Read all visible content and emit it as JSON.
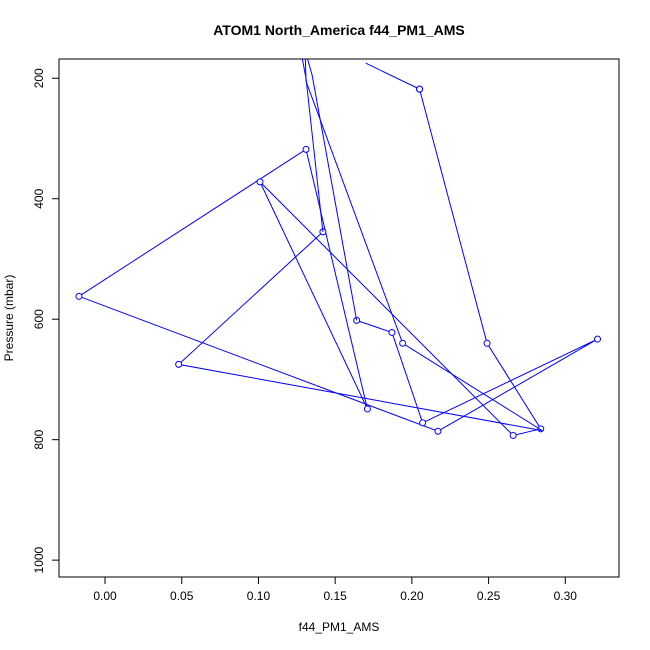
{
  "chart_data": {
    "type": "line",
    "title": "ATOM1 North_America f44_PM1_AMS",
    "xlabel": "f44_PM1_AMS",
    "ylabel": "Pressure (mbar)",
    "xlim": [
      -0.03,
      0.335
    ],
    "ylim": [
      1028,
      168
    ],
    "y_reversed": true,
    "x_ticks": [
      0.0,
      0.05,
      0.1,
      0.15,
      0.2,
      0.25,
      0.3
    ],
    "x_tick_labels": [
      "0.00",
      "0.05",
      "0.10",
      "0.15",
      "0.20",
      "0.25",
      "0.30"
    ],
    "y_ticks": [
      200,
      400,
      600,
      800,
      1000
    ],
    "y_tick_labels": [
      "200",
      "400",
      "600",
      "800",
      "1000"
    ],
    "grid": false,
    "legend": "none",
    "series": [
      {
        "color": "#0000ff",
        "marker": "open-circle",
        "x": [
          0.205,
          0.249,
          0.284,
          0.266,
          0.101,
          0.171,
          0.131,
          -0.017,
          0.217,
          0.321,
          0.207,
          0.187,
          0.164
        ],
        "y": [
          218,
          640,
          782,
          793,
          372,
          749,
          318,
          562,
          786,
          633,
          772,
          622,
          602
        ],
        "marker_shown": [
          true,
          true,
          true,
          true,
          true,
          true,
          true,
          true,
          true,
          true,
          true,
          true,
          true
        ]
      },
      {
        "color": "#0000ff",
        "marker": "open-circle",
        "x": [
          0.142,
          0.048,
          0.285,
          0.194,
          0.131,
          0.13,
          0.141
        ],
        "y": [
          455,
          675,
          785,
          640,
          205,
          120,
          140
        ],
        "marker_shown": [
          true,
          true,
          false,
          true,
          false,
          false,
          false
        ]
      },
      {
        "color": "#0000ff",
        "marker": "open-circle",
        "x": [
          0.205,
          0.17
        ],
        "y": [
          218,
          175
        ],
        "marker_shown": [
          true,
          false
        ]
      },
      {
        "color": "#0000ff",
        "marker": "open-circle",
        "x": [
          0.164,
          0.135,
          0.13
        ],
        "y": [
          602,
          195,
          150
        ],
        "marker_shown": [
          false,
          false,
          false
        ]
      },
      {
        "color": "#0000ff",
        "marker": "open-circle",
        "x": [
          0.142,
          0.131,
          0.128
        ],
        "y": [
          455,
          200,
          160
        ],
        "marker_shown": [
          false,
          false,
          false
        ]
      }
    ]
  }
}
